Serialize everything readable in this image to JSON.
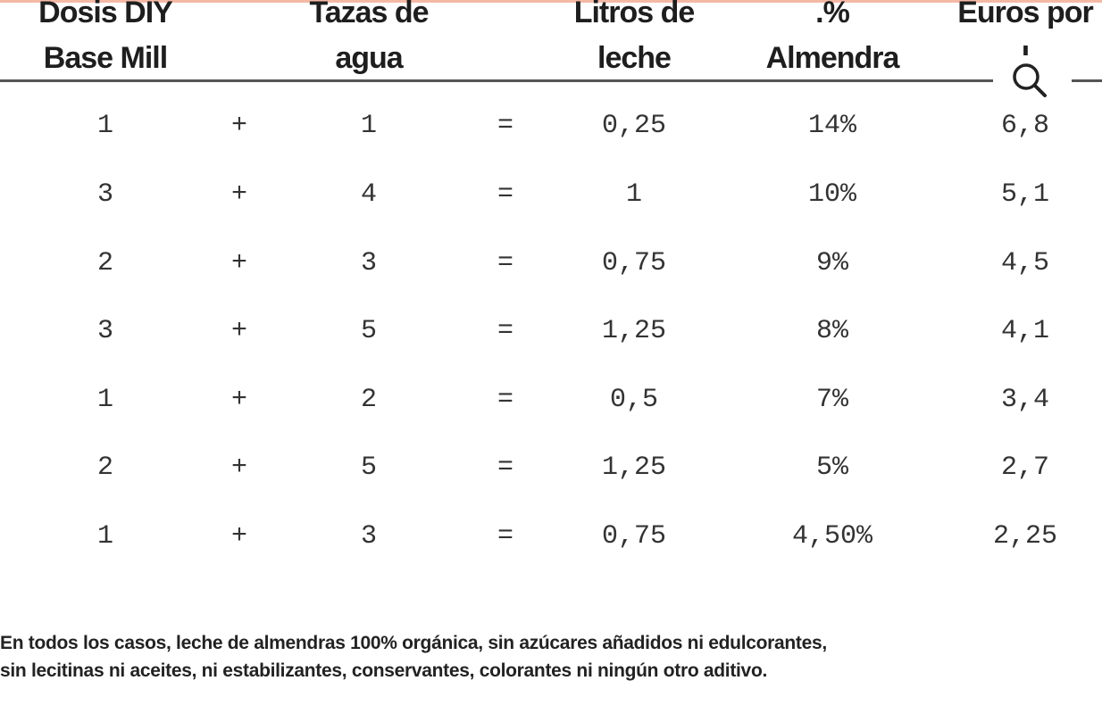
{
  "headers": [
    {
      "line1": "Dosis DIY",
      "line2": "Base Mill"
    },
    {
      "line1": "Tazas de",
      "line2": "agua"
    },
    {
      "line1": "Litros de",
      "line2": "leche"
    },
    {
      "line1": ".%",
      "line2": "Almendra"
    },
    {
      "line1": "Euros por",
      "line2": "l"
    }
  ],
  "rows": [
    {
      "dosis": "1",
      "plus": "+",
      "tazas": "1",
      "eq": "=",
      "litros": "0,25",
      "almendra": "14%",
      "euros": "6,8"
    },
    {
      "dosis": "3",
      "plus": "+",
      "tazas": "4",
      "eq": "=",
      "litros": "1",
      "almendra": "10%",
      "euros": "5,1"
    },
    {
      "dosis": "2",
      "plus": "+",
      "tazas": "3",
      "eq": "=",
      "litros": "0,75",
      "almendra": "9%",
      "euros": "4,5"
    },
    {
      "dosis": "3",
      "plus": "+",
      "tazas": "5",
      "eq": "=",
      "litros": "1,25",
      "almendra": "8%",
      "euros": "4,1"
    },
    {
      "dosis": "1",
      "plus": "+",
      "tazas": "2",
      "eq": "=",
      "litros": "0,5",
      "almendra": "7%",
      "euros": "3,4"
    },
    {
      "dosis": "2",
      "plus": "+",
      "tazas": "5",
      "eq": "=",
      "litros": "1,25",
      "almendra": "5%",
      "euros": "2,7"
    },
    {
      "dosis": "1",
      "plus": "+",
      "tazas": "3",
      "eq": "=",
      "litros": "0,75",
      "almendra": "4,50%",
      "euros": "2,25"
    }
  ],
  "note": {
    "line1": "En todos los casos, leche de almendras 100% orgánica, sin azúcares añadidos ni edulcorantes,",
    "line2": "sin lecitinas ni aceites, ni estabilizantes, conservantes, colorantes ni ningún otro aditivo."
  },
  "icons": {
    "zoom": "search-icon"
  },
  "colors": {
    "top_accent": "#f4b9a6",
    "rule": "#555555"
  }
}
